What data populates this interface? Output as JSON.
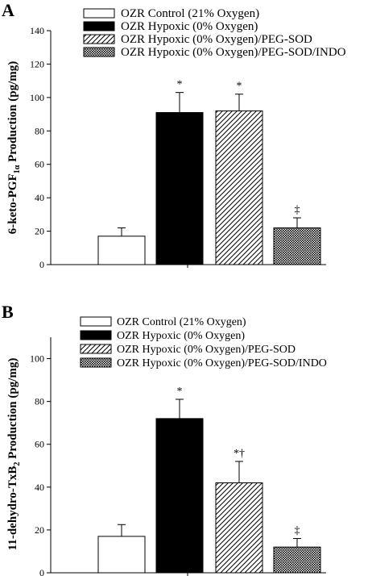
{
  "legend": [
    {
      "label": "OZR Control (21% Oxygen)",
      "pattern": "white"
    },
    {
      "label": "OZR Hypoxic (0% Oxygen)",
      "pattern": "black"
    },
    {
      "label": "OZR Hypoxic (0% Oxygen)/PEG-SOD",
      "pattern": "hatch"
    },
    {
      "label": "OZR Hypoxic (0% Oxygen)/PEG-SOD/INDO",
      "pattern": "crosshatch"
    }
  ],
  "chart_data": [
    {
      "type": "bar",
      "panel_label": "A",
      "ylabel_parts": [
        "6-keto-PGF",
        "1α",
        " Production (pg/mg)"
      ],
      "ylim": [
        0,
        140
      ],
      "yticks": [
        0,
        20,
        40,
        60,
        80,
        100,
        120,
        140
      ],
      "legend_placement": "top-right",
      "grid": false,
      "series": [
        {
          "name": "OZR Control (21% Oxygen)",
          "value": 17,
          "error": 5,
          "annotation": ""
        },
        {
          "name": "OZR Hypoxic (0% Oxygen)",
          "value": 91,
          "error": 12,
          "annotation": "*"
        },
        {
          "name": "OZR Hypoxic (0% Oxygen)/PEG-SOD",
          "value": 92,
          "error": 10,
          "annotation": "*"
        },
        {
          "name": "OZR Hypoxic (0% Oxygen)/PEG-SOD/INDO",
          "value": 22,
          "error": 6,
          "annotation": "‡"
        }
      ]
    },
    {
      "type": "bar",
      "panel_label": "B",
      "ylabel_parts": [
        "11-dehydro-TxB",
        "2",
        " Production (pg/mg)"
      ],
      "ylim": [
        0,
        110
      ],
      "yticks": [
        0,
        20,
        40,
        60,
        80,
        100
      ],
      "legend_placement": "top-right",
      "grid": false,
      "series": [
        {
          "name": "OZR Control (21% Oxygen)",
          "value": 17,
          "error": 5.5,
          "annotation": ""
        },
        {
          "name": "OZR Hypoxic (0% Oxygen)",
          "value": 72,
          "error": 9,
          "annotation": "*"
        },
        {
          "name": "OZR Hypoxic (0% Oxygen)/PEG-SOD",
          "value": 42,
          "error": 10,
          "annotation": "*†"
        },
        {
          "name": "OZR Hypoxic (0% Oxygen)/PEG-SOD/INDO",
          "value": 12,
          "error": 4,
          "annotation": "‡"
        }
      ]
    }
  ]
}
